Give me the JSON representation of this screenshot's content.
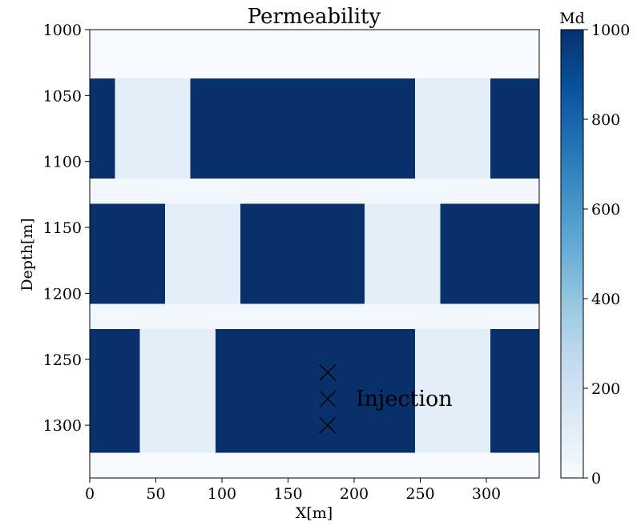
{
  "chart_data": {
    "type": "heatmap",
    "title": "Permeability",
    "xlabel": "X[m]",
    "ylabel": "Depth[m]",
    "xlim": [
      0,
      340
    ],
    "ylim": [
      1340,
      1000
    ],
    "x_ticks": [
      "0",
      "50",
      "100",
      "150",
      "200",
      "250",
      "300"
    ],
    "y_ticks": [
      "1000",
      "1050",
      "1100",
      "1150",
      "1200",
      "1250",
      "1300"
    ],
    "colorbar": {
      "label": "Md",
      "range": [
        0,
        1000
      ],
      "ticks": [
        "0",
        "200",
        "400",
        "600",
        "800",
        "1000"
      ],
      "colormap": "Blues"
    },
    "cells": [
      {
        "x0": 0,
        "x1": 340,
        "y0": 1000,
        "y1": 1037,
        "value": 5
      },
      {
        "x0": 0,
        "x1": 19,
        "y0": 1037,
        "y1": 1113,
        "value": 1000
      },
      {
        "x0": 19,
        "x1": 76,
        "y0": 1037,
        "y1": 1113,
        "value": 100
      },
      {
        "x0": 76,
        "x1": 246,
        "y0": 1037,
        "y1": 1113,
        "value": 1000
      },
      {
        "x0": 246,
        "x1": 303,
        "y0": 1037,
        "y1": 1113,
        "value": 100
      },
      {
        "x0": 303,
        "x1": 340,
        "y0": 1037,
        "y1": 1113,
        "value": 1000
      },
      {
        "x0": 0,
        "x1": 340,
        "y0": 1113,
        "y1": 1132,
        "value": 30
      },
      {
        "x0": 0,
        "x1": 57,
        "y0": 1132,
        "y1": 1208,
        "value": 1000
      },
      {
        "x0": 57,
        "x1": 114,
        "y0": 1132,
        "y1": 1208,
        "value": 100
      },
      {
        "x0": 114,
        "x1": 208,
        "y0": 1132,
        "y1": 1208,
        "value": 1000
      },
      {
        "x0": 208,
        "x1": 265,
        "y0": 1132,
        "y1": 1208,
        "value": 100
      },
      {
        "x0": 265,
        "x1": 340,
        "y0": 1132,
        "y1": 1208,
        "value": 1000
      },
      {
        "x0": 0,
        "x1": 340,
        "y0": 1208,
        "y1": 1227,
        "value": 30
      },
      {
        "x0": 0,
        "x1": 38,
        "y0": 1227,
        "y1": 1321,
        "value": 1000
      },
      {
        "x0": 38,
        "x1": 95,
        "y0": 1227,
        "y1": 1321,
        "value": 100
      },
      {
        "x0": 95,
        "x1": 246,
        "y0": 1227,
        "y1": 1321,
        "value": 1000
      },
      {
        "x0": 246,
        "x1": 303,
        "y0": 1227,
        "y1": 1321,
        "value": 100
      },
      {
        "x0": 303,
        "x1": 340,
        "y0": 1227,
        "y1": 1321,
        "value": 1000
      },
      {
        "x0": 0,
        "x1": 340,
        "y0": 1321,
        "y1": 1340,
        "value": 5
      }
    ],
    "markers": [
      {
        "x": 180,
        "y": 1260,
        "symbol": "x"
      },
      {
        "x": 180,
        "y": 1280,
        "symbol": "x"
      },
      {
        "x": 180,
        "y": 1300,
        "symbol": "x"
      }
    ],
    "annotations": [
      {
        "text": "Injection",
        "x": 200,
        "y": 1280
      }
    ],
    "grid": false,
    "legend": "none"
  }
}
